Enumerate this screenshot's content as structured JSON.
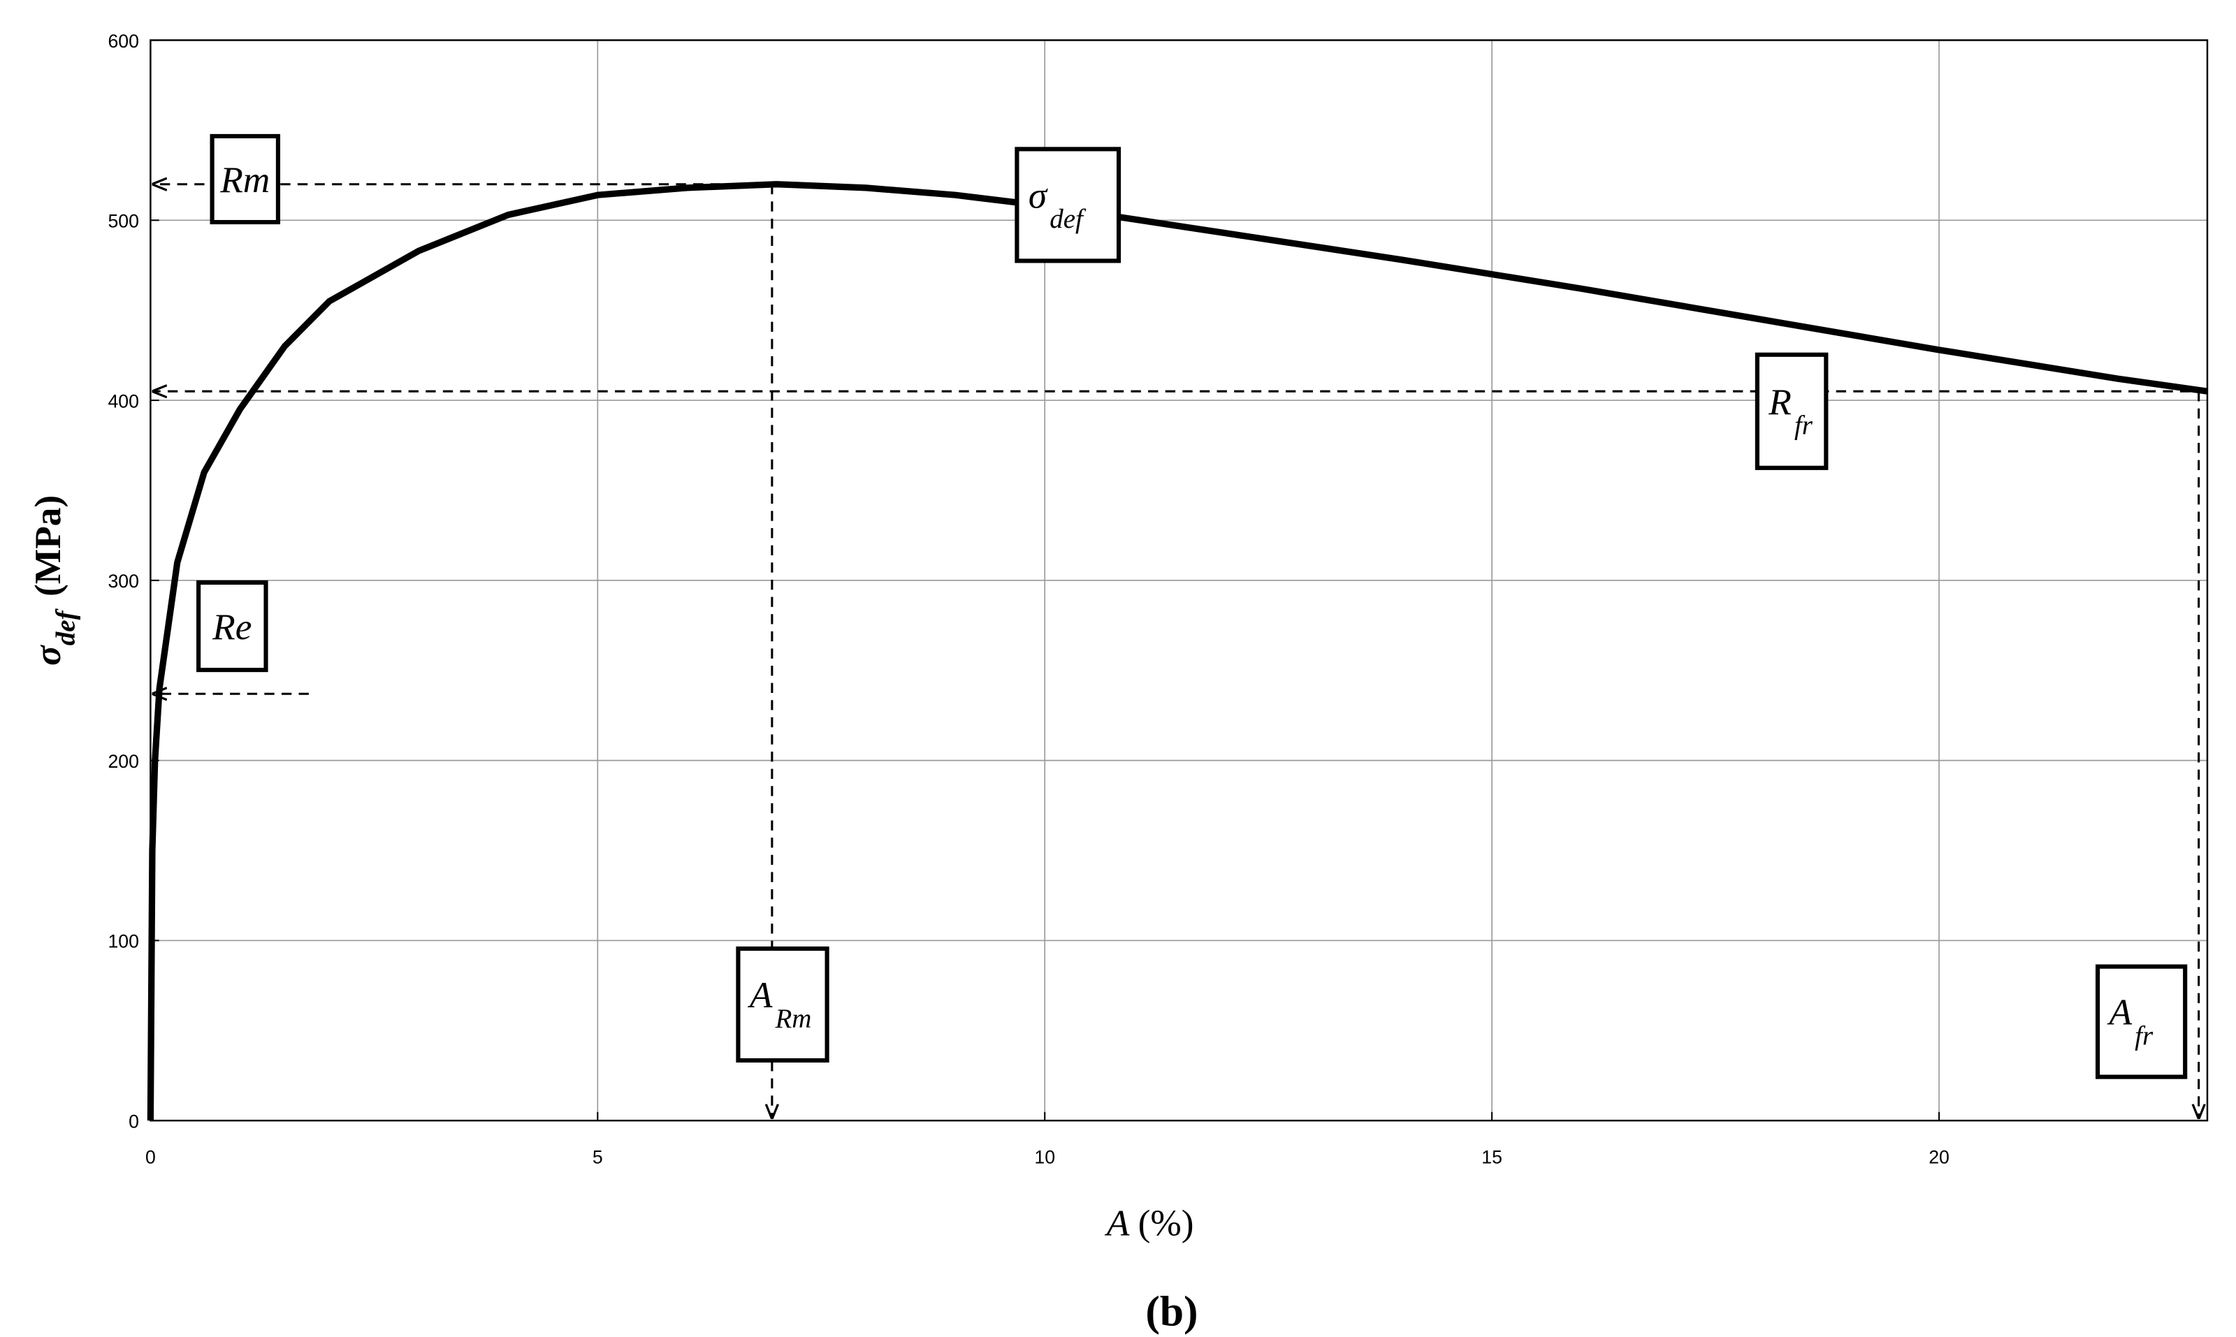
{
  "chart_data": {
    "type": "line",
    "x_label": {
      "main": "A",
      "unit": "(%)"
    },
    "y_label": {
      "main": "σ",
      "sub": "def",
      "unit": "(MPa)"
    },
    "caption": "(b)",
    "xlim": [
      0,
      23
    ],
    "xticks": [
      0,
      5,
      10,
      15,
      20
    ],
    "ylim": [
      0,
      600
    ],
    "yticks": [
      0,
      100,
      200,
      300,
      400,
      500,
      600
    ],
    "grid": true,
    "series": [
      {
        "name": "σdef",
        "color": "#000000",
        "x": [
          0,
          0.02,
          0.05,
          0.1,
          0.3,
          0.6,
          1,
          1.5,
          2,
          3,
          4,
          5,
          6,
          7,
          8,
          9,
          10,
          12,
          14,
          16,
          18,
          20,
          22,
          23
        ],
        "values": [
          0,
          150,
          200,
          240,
          310,
          360,
          395,
          430,
          455,
          483,
          503,
          514,
          518,
          520,
          518,
          514,
          508,
          493,
          478,
          462,
          445,
          428,
          412,
          405
        ]
      }
    ],
    "annotations": [
      {
        "text": "Rm",
        "dir": "h",
        "x": 6.95,
        "y": 520
      },
      {
        "text": "A",
        "sub": "Rm",
        "dir": "v",
        "x": 6.95,
        "y": 520
      },
      {
        "text": "R",
        "sub": "fr",
        "dir": "h",
        "x": 23,
        "y": 405
      },
      {
        "text": "A",
        "sub": "fr",
        "dir": "v",
        "x": 23,
        "y": 405
      },
      {
        "text": "Re",
        "dir": "h",
        "x": 1.77,
        "y": 237
      },
      {
        "text": "σ",
        "sub": "def"
      }
    ]
  }
}
